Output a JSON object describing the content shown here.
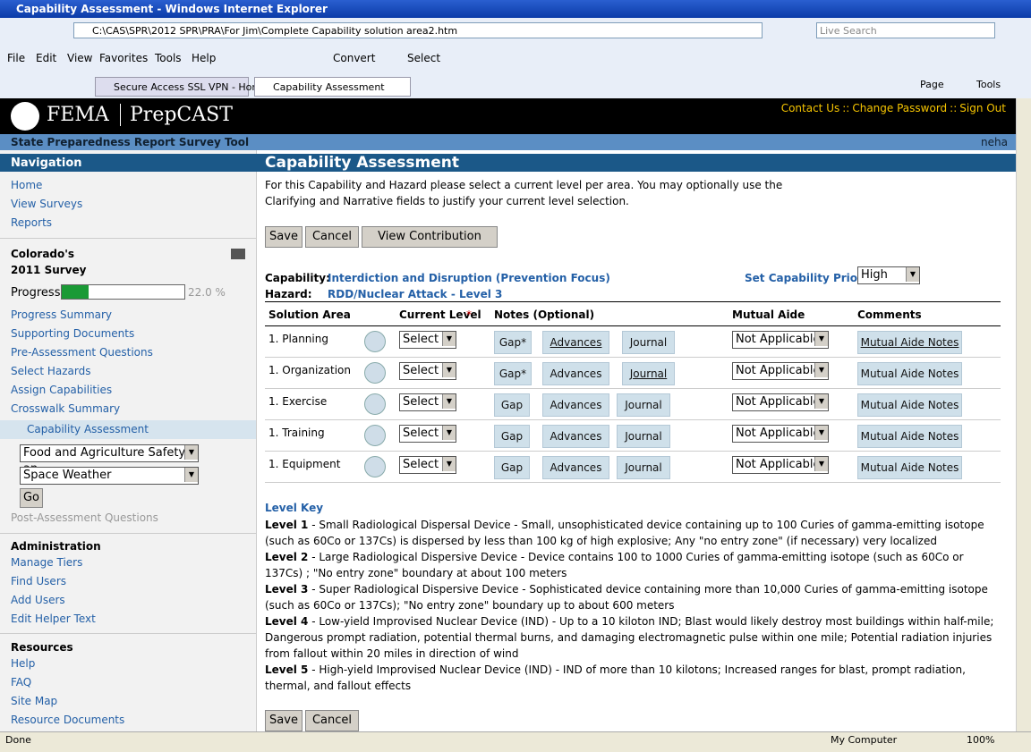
{
  "browser": {
    "title": "Capability Assessment - Windows Internet Explorer",
    "address": "C:\\CAS\\SPR\\2012 SPR\\PRA\\For Jim\\Complete Capability solution area2.htm",
    "search": "Live Search",
    "menu": [
      "File",
      "Edit",
      "View",
      "Favorites",
      "Tools",
      "Help"
    ],
    "convert": "Convert",
    "select": "Select",
    "tabs": [
      "Secure Access SSL VPN - Home",
      "Capability Assessment"
    ],
    "tools": [
      "Page",
      "Tools"
    ],
    "status": "Done",
    "zone": "My Computer",
    "zoom": "100%"
  },
  "header": {
    "brand": "FEMA",
    "product": "PrepCAST",
    "links": [
      "Contact Us",
      "Change Password",
      "Sign Out"
    ],
    "separator": "::",
    "tool": "State Preparedness Report Survey Tool",
    "user": "neha"
  },
  "nav": {
    "heading": "Navigation",
    "links": [
      "Home",
      "View Surveys",
      "Reports"
    ],
    "survey": [
      "Colorado's",
      "2011 Survey"
    ],
    "progress": {
      "label": "Progress",
      "value": 22.0,
      "value_label": "22.0 %"
    },
    "survey_links": [
      "Progress Summary",
      "Supporting Documents",
      "Pre-Assessment Questions",
      "Select Hazards",
      "Assign Capabilities",
      "Crosswalk Summary"
    ],
    "current": "Capability Assessment",
    "dropdowns": [
      "Food and Agriculture Safety an",
      "Space Weather"
    ],
    "go": "Go",
    "post": "Post-Assessment Questions",
    "admin": {
      "heading": "Administration",
      "links": [
        "Manage Tiers",
        "Find Users",
        "Add Users",
        "Edit Helper Text"
      ]
    },
    "resources": {
      "heading": "Resources",
      "links": [
        "Help",
        "FAQ",
        "Site Map",
        "Resource Documents"
      ]
    }
  },
  "main": {
    "title": "Capability Assessment",
    "intro": [
      "For this Capability and Hazard please select a current level per area. You may optionally use the",
      "Clarifying and Narrative fields to justify your current level selection."
    ],
    "buttons": [
      "Save",
      "Cancel",
      "View Contribution"
    ],
    "capability": {
      "label": "Capability:",
      "value": "Interdiction and Disruption (Prevention Focus)"
    },
    "hazard": {
      "label": "Hazard:",
      "value": "RDD/Nuclear Attack - Level 3"
    },
    "priority": {
      "label": "Set Capability Priority:",
      "value": "High"
    },
    "table": {
      "headers": [
        "Solution Area",
        "Current Level",
        "Notes (Optional)",
        "Mutual Aide",
        "Comments"
      ],
      "required": "*",
      "rows": [
        {
          "area": "1. Planning",
          "level": "Select",
          "notes": [
            "Gap*",
            "Advances",
            "Journal"
          ],
          "mutual": "Not Applicable",
          "comment": "Mutual Aide Notes"
        },
        {
          "area": "1. Organization",
          "level": "Select",
          "notes": [
            "Gap*",
            "Advances",
            "Journal"
          ],
          "mutual": "Not Applicable",
          "comment": "Mutual Aide Notes"
        },
        {
          "area": "1. Exercise",
          "level": "Select",
          "notes": [
            "Gap",
            "Advances",
            "Journal"
          ],
          "mutual": "Not Applicable",
          "comment": "Mutual Aide Notes"
        },
        {
          "area": "1. Training",
          "level": "Select",
          "notes": [
            "Gap",
            "Advances",
            "Journal"
          ],
          "mutual": "Not Applicable",
          "comment": "Mutual Aide Notes"
        },
        {
          "area": "1. Equipment",
          "level": "Select",
          "notes": [
            "Gap",
            "Advances",
            "Journal"
          ],
          "mutual": "Not Applicable",
          "comment": "Mutual Aide Notes"
        }
      ]
    },
    "level_key": {
      "title": "Level Key",
      "levels": [
        {
          "label": "Level 1",
          "text": " - Small Radiological Dispersal Device - Small, unsophisticated device containing up to 100 Curies of gamma-emitting isotope (such as 60Co or 137Cs) is dispersed by less than 100 kg of high explosive; Any \"no entry zone\" (if necessary) very localized"
        },
        {
          "label": "Level 2",
          "text": " - Large Radiological Dispersive Device - Device contains 100 to 1000 Curies of gamma-emitting isotope (such as 60Co or 137Cs) ; \"No entry zone\" boundary at about 100 meters"
        },
        {
          "label": "Level 3",
          "text": " - Super Radiological Dispersive Device - Sophisticated device containing more than 10,000 Curies of gamma-emitting isotope (such as 60Co or 137Cs); \"No entry zone\" boundary up to about 600 meters"
        },
        {
          "label": "Level 4",
          "text": " - Low-yield Improvised Nuclear Device (IND) - Up to a 10 kiloton IND; Blast would likely destroy most buildings within half-mile; Dangerous prompt radiation, potential thermal burns, and damaging electromagnetic pulse within one mile; Potential radiation injuries from fallout within 20 miles in direction of wind"
        },
        {
          "label": "Level 5",
          "text": " - High-yield Improvised Nuclear Device (IND) - IND of more than 10 kilotons; Increased ranges for blast, prompt radiation, thermal, and fallout effects"
        }
      ]
    },
    "bottom_buttons": [
      "Save",
      "Cancel"
    ]
  }
}
